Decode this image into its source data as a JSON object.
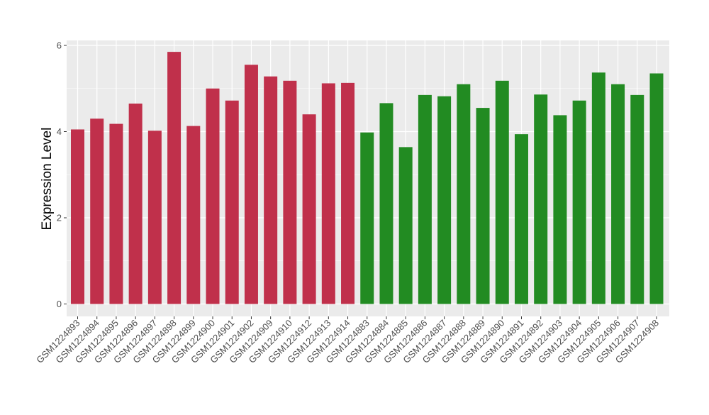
{
  "chart_data": {
    "type": "bar",
    "title": "",
    "xlabel": "",
    "ylabel": "Expression Level",
    "ylim": [
      0,
      6.1
    ],
    "yticks": [
      0,
      2,
      4,
      6
    ],
    "grid": true,
    "legend": "none",
    "colors": {
      "group1": "#c0304b",
      "group2": "#228b22",
      "panel": "#ebebeb",
      "grid": "#ffffff"
    },
    "categories": [
      "GSM1224893",
      "GSM1224894",
      "GSM1224895",
      "GSM1224896",
      "GSM1224897",
      "GSM1224898",
      "GSM1224899",
      "GSM1224900",
      "GSM1224901",
      "GSM1224902",
      "GSM1224909",
      "GSM1224910",
      "GSM1224912",
      "GSM1224913",
      "GSM1224914",
      "GSM1224883",
      "GSM1224884",
      "GSM1224885",
      "GSM1224886",
      "GSM1224887",
      "GSM1224888",
      "GSM1224889",
      "GSM1224890",
      "GSM1224891",
      "GSM1224892",
      "GSM1224903",
      "GSM1224904",
      "GSM1224905",
      "GSM1224906",
      "GSM1224907",
      "GSM1224908"
    ],
    "values": [
      4.05,
      4.3,
      4.18,
      4.65,
      4.02,
      5.85,
      4.13,
      5.0,
      4.72,
      5.55,
      5.28,
      5.18,
      4.4,
      5.12,
      5.13,
      3.98,
      4.66,
      3.64,
      4.85,
      4.82,
      5.1,
      4.55,
      5.18,
      3.94,
      4.86,
      4.38,
      4.72,
      5.37,
      5.1,
      4.85,
      5.35
    ],
    "groups": [
      "group1",
      "group1",
      "group1",
      "group1",
      "group1",
      "group1",
      "group1",
      "group1",
      "group1",
      "group1",
      "group1",
      "group1",
      "group1",
      "group1",
      "group1",
      "group2",
      "group2",
      "group2",
      "group2",
      "group2",
      "group2",
      "group2",
      "group2",
      "group2",
      "group2",
      "group2",
      "group2",
      "group2",
      "group2",
      "group2",
      "group2"
    ]
  }
}
